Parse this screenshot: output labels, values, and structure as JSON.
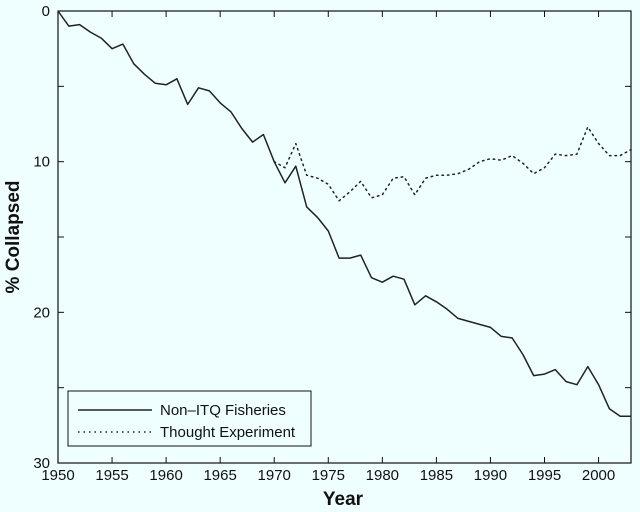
{
  "chart_data": {
    "type": "line",
    "title": "",
    "xlabel": "Year",
    "ylabel": "% Collapsed",
    "xlim": [
      1950,
      2003
    ],
    "ylim": [
      0,
      30
    ],
    "y_inverted": true,
    "grid": false,
    "legend_position": "bottom-left",
    "x_ticks": [
      1950,
      1955,
      1960,
      1965,
      1970,
      1975,
      1980,
      1985,
      1990,
      1995,
      2000
    ],
    "y_ticks": [
      0,
      10,
      20,
      30
    ],
    "y_minor_ticks": [
      5,
      15,
      25
    ],
    "series": [
      {
        "name": "Non–ITQ Fisheries",
        "style": "solid",
        "x": [
          1950,
          1951,
          1952,
          1953,
          1954,
          1955,
          1956,
          1957,
          1958,
          1959,
          1960,
          1961,
          1962,
          1963,
          1964,
          1965,
          1966,
          1967,
          1968,
          1969,
          1970,
          1971,
          1972,
          1973,
          1974,
          1975,
          1976,
          1977,
          1978,
          1979,
          1980,
          1981,
          1982,
          1983,
          1984,
          1985,
          1986,
          1987,
          1988,
          1989,
          1990,
          1991,
          1992,
          1993,
          1994,
          1995,
          1996,
          1997,
          1998,
          1999,
          2000,
          2001,
          2002,
          2003
        ],
        "values": [
          0,
          1.0,
          0.9,
          1.4,
          1.8,
          2.5,
          2.2,
          3.5,
          4.2,
          4.8,
          4.9,
          4.5,
          6.2,
          5.1,
          5.3,
          6.1,
          6.7,
          7.8,
          8.7,
          8.2,
          10.0,
          11.4,
          10.3,
          13.0,
          13.7,
          14.6,
          16.4,
          16.4,
          16.2,
          17.7,
          18.0,
          17.6,
          17.8,
          19.5,
          18.9,
          19.3,
          19.8,
          20.4,
          20.6,
          20.8,
          21.0,
          21.6,
          21.7,
          22.8,
          24.2,
          24.1,
          23.8,
          24.6,
          24.8,
          23.6,
          24.8,
          26.4,
          26.9,
          26.9
        ]
      },
      {
        "name": "Thought Experiment",
        "style": "dotted",
        "x": [
          1970,
          1971,
          1972,
          1973,
          1974,
          1975,
          1976,
          1977,
          1978,
          1979,
          1980,
          1981,
          1982,
          1983,
          1984,
          1985,
          1986,
          1987,
          1988,
          1989,
          1990,
          1991,
          1992,
          1993,
          1994,
          1995,
          1996,
          1997,
          1998,
          1999,
          2000,
          2001,
          2002,
          2003
        ],
        "values": [
          10.0,
          10.4,
          8.8,
          10.9,
          11.1,
          11.5,
          12.6,
          12.0,
          11.3,
          12.4,
          12.2,
          11.1,
          11.0,
          12.2,
          11.1,
          10.9,
          10.9,
          10.8,
          10.5,
          10.0,
          9.8,
          9.9,
          9.6,
          10.1,
          10.8,
          10.4,
          9.5,
          9.6,
          9.5,
          7.7,
          8.8,
          9.6,
          9.6,
          9.2
        ]
      }
    ]
  }
}
